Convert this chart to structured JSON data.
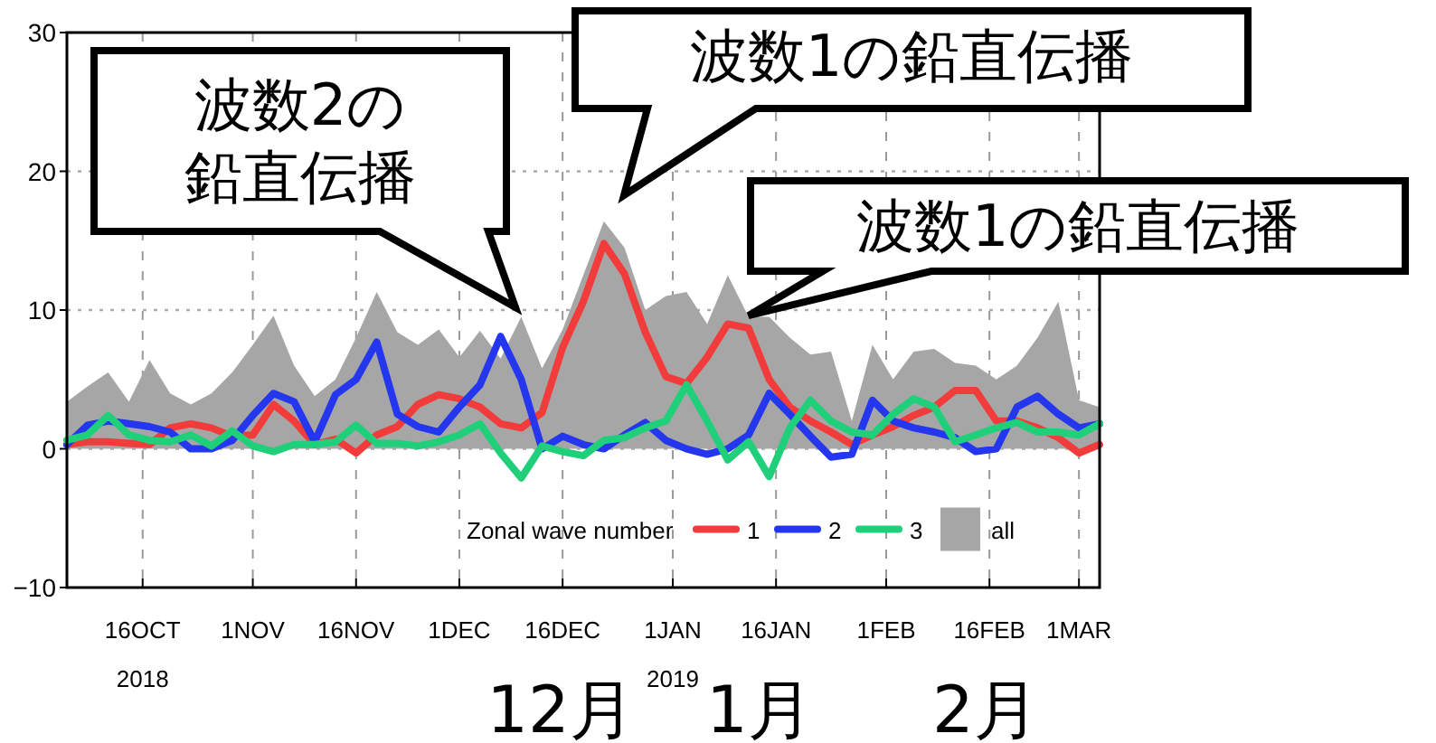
{
  "chart_data": {
    "type": "line",
    "x": [
      "2018-10-05",
      "2018-10-08",
      "2018-10-11",
      "2018-10-14",
      "2018-10-17",
      "2018-10-20",
      "2018-10-23",
      "2018-10-26",
      "2018-10-29",
      "2018-11-01",
      "2018-11-04",
      "2018-11-07",
      "2018-11-10",
      "2018-11-13",
      "2018-11-16",
      "2018-11-19",
      "2018-11-22",
      "2018-11-25",
      "2018-11-28",
      "2018-12-01",
      "2018-12-04",
      "2018-12-07",
      "2018-12-10",
      "2018-12-13",
      "2018-12-16",
      "2018-12-19",
      "2018-12-22",
      "2018-12-25",
      "2018-12-28",
      "2018-12-31",
      "2019-01-03",
      "2019-01-06",
      "2019-01-09",
      "2019-01-12",
      "2019-01-15",
      "2019-01-18",
      "2019-01-21",
      "2019-01-24",
      "2019-01-27",
      "2019-01-30",
      "2019-02-02",
      "2019-02-05",
      "2019-02-08",
      "2019-02-11",
      "2019-02-14",
      "2019-02-17",
      "2019-02-20",
      "2019-02-23",
      "2019-02-26",
      "2019-03-01",
      "2019-03-04"
    ],
    "series": [
      {
        "name": "all",
        "type": "area",
        "color": "#a6a6a6",
        "values": [
          3.4,
          4.5,
          5.5,
          3.4,
          6.4,
          4,
          3.2,
          4,
          5.5,
          7.5,
          9.6,
          6,
          3.8,
          5,
          8,
          11.3,
          8.4,
          7.5,
          8.6,
          6.6,
          8.5,
          6.5,
          9.5,
          5.8,
          8.6,
          12.5,
          16.4,
          14.5,
          10,
          11,
          11.3,
          9,
          12.5,
          9.5,
          9.5,
          8,
          6.8,
          7,
          2,
          7.5,
          5,
          7,
          7.2,
          6.2,
          6,
          5,
          6,
          8,
          10.6,
          3.5,
          3
        ]
      },
      {
        "name": "1",
        "color": "#f23c3c",
        "values": [
          0.3,
          0.5,
          0.5,
          0.4,
          0.3,
          1.5,
          1.8,
          1.5,
          0.9,
          1,
          3.2,
          2,
          0.3,
          0.7,
          -0.3,
          1,
          1.6,
          3.2,
          3.9,
          3.6,
          3,
          1.8,
          1.5,
          2.6,
          7.3,
          10.6,
          14.8,
          12.6,
          8.4,
          5.2,
          4.7,
          6.6,
          9,
          8.7,
          5,
          3,
          2,
          1.2,
          0.3,
          1,
          1.6,
          2.4,
          3,
          4.2,
          4.2,
          2,
          2,
          1.5,
          0.8,
          -0.3,
          0.3
        ]
      },
      {
        "name": "2",
        "color": "#2436ee",
        "values": [
          0.3,
          1.7,
          2,
          1.8,
          1.6,
          1.2,
          0,
          0,
          0.6,
          2.4,
          4,
          3.4,
          0.5,
          3.9,
          5,
          7.7,
          2.5,
          1.6,
          1.2,
          3,
          4.6,
          8.1,
          5,
          0,
          0.9,
          0.3,
          0,
          1,
          1.9,
          0.6,
          0,
          -0.4,
          0,
          1,
          4,
          2.5,
          0.9,
          -0.6,
          -0.4,
          3.5,
          2,
          1.5,
          1.2,
          0.8,
          -0.2,
          0,
          3,
          3.8,
          2.5,
          1.5,
          1.8
        ]
      },
      {
        "name": "3",
        "color": "#1fcf7a",
        "values": [
          0.6,
          1,
          2.4,
          1,
          0.6,
          0.5,
          1,
          0.2,
          1.3,
          0.2,
          -0.2,
          0.3,
          0.3,
          0.5,
          1.7,
          0.4,
          0.4,
          0.2,
          0.5,
          1,
          1.8,
          -0.3,
          -2.1,
          0.2,
          -0.2,
          -0.5,
          0.6,
          0.8,
          1.5,
          2,
          4.6,
          2,
          -0.8,
          0.5,
          -2,
          1.5,
          3.5,
          2,
          1.2,
          1,
          2.5,
          3.6,
          3,
          0.5,
          1,
          1.5,
          1.9,
          1.2,
          1.2,
          1,
          1.8
        ]
      }
    ],
    "xlim": [
      "2018-10-05",
      "2019-03-04"
    ],
    "xticks": [
      {
        "value": "2018-10-16",
        "label": "16OCT\n2018"
      },
      {
        "value": "2018-11-01",
        "label": "1NOV"
      },
      {
        "value": "2018-11-16",
        "label": "16NOV"
      },
      {
        "value": "2018-12-01",
        "label": "1DEC"
      },
      {
        "value": "2018-12-16",
        "label": "16DEC"
      },
      {
        "value": "2019-01-01",
        "label": "1JAN\n2019"
      },
      {
        "value": "2019-01-16",
        "label": "16JAN"
      },
      {
        "value": "2019-02-01",
        "label": "1FEB"
      },
      {
        "value": "2019-02-16",
        "label": "16FEB"
      },
      {
        "value": "2019-03-01",
        "label": "1MAR"
      }
    ],
    "ylim": [
      -10,
      30
    ],
    "yticks": [
      -10,
      0,
      10,
      20,
      30
    ],
    "grid": true,
    "legend": "bottom",
    "legend_title": "Zonal wave number",
    "annotations": [
      "波数2の鉛直伝播",
      "波数1の鉛直伝播",
      {
        "text": "波数1の鉛直伝播",
        "x": "2019-01-12",
        "y": 9.6
      },
      "12月",
      "1月",
      "2月"
    ]
  }
}
